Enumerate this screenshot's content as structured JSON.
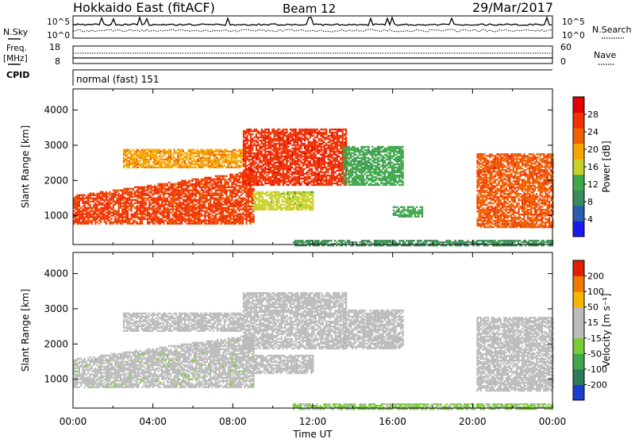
{
  "header": {
    "station": "Hokkaido East (fitACF)",
    "beam": "Beam 12",
    "date": "29/Mar/2017"
  },
  "noise_panel": {
    "left_label": "N.Sky",
    "right_label": "N.Search",
    "ticks_left": [
      "10^5",
      "10^0"
    ],
    "ticks_right": [
      "10^5",
      "10^0"
    ]
  },
  "freq_panel": {
    "left_label_1": "Freq.",
    "left_label_2": "[MHz]",
    "right_label": "Nave",
    "ticks_left": [
      "18",
      "8"
    ],
    "ticks_right": [
      "60",
      "0"
    ]
  },
  "cpid": {
    "label": "CPID",
    "value": "normal (fast) 151"
  },
  "colors": {
    "power_scale": [
      "#1a1aee",
      "#2a5cb0",
      "#3d8a5c",
      "#3fa84a",
      "#c8d22a",
      "#f5a400",
      "#f06000",
      "#f03000",
      "#e00000"
    ],
    "velocity_scale": [
      "#1a3fcc",
      "#2f7a5a",
      "#3fa84a",
      "#77cc33",
      "#bbbbbb",
      "#bbbbbb",
      "#f5b400",
      "#f07a00",
      "#e02000"
    ]
  },
  "chart_data": [
    {
      "type": "heatmap",
      "name": "power-panel",
      "ylabel": "Slant Range [km]",
      "xlim": [
        0,
        24
      ],
      "ylim": [
        180,
        4600
      ],
      "yticks": [
        "1000",
        "2000",
        "3000",
        "4000"
      ],
      "colorbar": {
        "label": "Power [dB]",
        "ticks": [
          "4",
          "8",
          "12",
          "16",
          "20",
          "24",
          "28"
        ],
        "range": [
          0,
          32
        ]
      },
      "echo_regions": [
        {
          "t_start": 0.0,
          "t_end": 9.0,
          "range_low": 800,
          "range_high": 1600,
          "ramp_high": 2300,
          "value": 26
        },
        {
          "t_start": 2.5,
          "t_end": 8.5,
          "range_low": 2400,
          "range_high": 2900,
          "value": 20
        },
        {
          "t_start": 8.5,
          "t_end": 13.7,
          "range_low": 1900,
          "range_high": 3500,
          "value": 27
        },
        {
          "t_start": 9.0,
          "t_end": 12.0,
          "range_low": 1200,
          "range_high": 1700,
          "value": 16
        },
        {
          "t_start": 13.5,
          "t_end": 16.5,
          "range_low": 1900,
          "range_high": 3000,
          "value": 12
        },
        {
          "t_start": 16.0,
          "t_end": 17.5,
          "range_low": 1000,
          "range_high": 1300,
          "value": 12
        },
        {
          "t_start": 20.2,
          "t_end": 24.0,
          "range_low": 700,
          "range_high": 2800,
          "value": 24
        },
        {
          "t_start": 11.0,
          "t_end": 24.0,
          "range_low": 180,
          "range_high": 350,
          "value": 10
        }
      ]
    },
    {
      "type": "heatmap",
      "name": "velocity-panel",
      "xlabel": "Time UT",
      "ylabel": "Slant Range [km]",
      "xlim": [
        0,
        24
      ],
      "ylim": [
        180,
        4600
      ],
      "xticks": [
        "00:00",
        "04:00",
        "08:00",
        "12:00",
        "16:00",
        "20:00",
        "00:00"
      ],
      "yticks": [
        "1000",
        "2000",
        "3000",
        "4000"
      ],
      "colorbar": {
        "label": "Velocity [m s⁻¹]",
        "ticks": [
          "200",
          "100",
          "50",
          "15",
          "-15",
          "-50",
          "-100",
          "-200"
        ],
        "range": [
          -250,
          250
        ]
      },
      "echo_regions": [
        {
          "t_start": 0.0,
          "t_end": 9.0,
          "range_low": 800,
          "range_high": 1600,
          "ramp_high": 2300,
          "value": 0
        },
        {
          "t_start": 2.5,
          "t_end": 8.5,
          "range_low": 2400,
          "range_high": 2900,
          "value": 20
        },
        {
          "t_start": 8.5,
          "t_end": 13.7,
          "range_low": 1900,
          "range_high": 3500,
          "value": 5
        },
        {
          "t_start": 9.0,
          "t_end": 12.0,
          "range_low": 1200,
          "range_high": 1700,
          "value": 40
        },
        {
          "t_start": 13.5,
          "t_end": 16.5,
          "range_low": 1900,
          "range_high": 3000,
          "value": 40
        },
        {
          "t_start": 20.2,
          "t_end": 24.0,
          "range_low": 700,
          "range_high": 2800,
          "value": 10
        },
        {
          "t_start": 11.0,
          "t_end": 24.0,
          "range_low": 180,
          "range_high": 350,
          "value": -40
        }
      ]
    }
  ]
}
